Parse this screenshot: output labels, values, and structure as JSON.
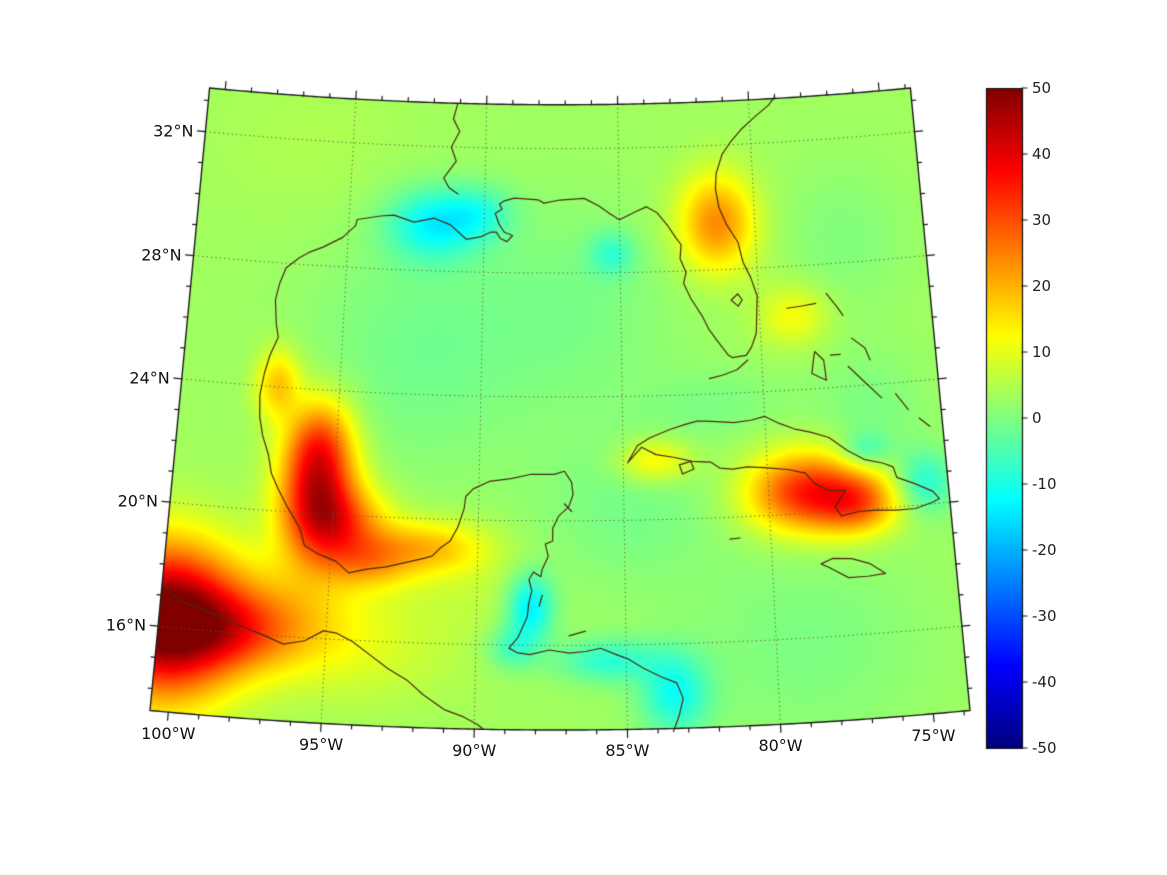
{
  "figure": {
    "background": "#ffffff",
    "kind": "geographic-heatmap"
  },
  "map": {
    "projection": {
      "name": "lambert-conformal-conic",
      "std_parallels": [
        16,
        32
      ],
      "lat_range": [
        13.3,
        33.4
      ],
      "lon_range": [
        -100.6,
        -73.8
      ]
    },
    "graticule": {
      "lat_lines": [
        16,
        20,
        24,
        28,
        32
      ],
      "lon_lines": [
        -95,
        -90,
        -85,
        -80
      ]
    },
    "lat_ticks": [
      {
        "value": 32,
        "label": "32°N"
      },
      {
        "value": 28,
        "label": "28°N"
      },
      {
        "value": 24,
        "label": "24°N"
      },
      {
        "value": 20,
        "label": "20°N"
      },
      {
        "value": 16,
        "label": "16°N"
      }
    ],
    "lon_ticks": [
      {
        "value": -100,
        "label": "100°W"
      },
      {
        "value": -95,
        "label": "95°W"
      },
      {
        "value": -90,
        "label": "90°W"
      },
      {
        "value": -85,
        "label": "85°W"
      },
      {
        "value": -80,
        "label": "80°W"
      },
      {
        "value": -75,
        "label": "75°W"
      }
    ],
    "coast_color": "#4a2a10",
    "grid_color": "#5c5c4a",
    "frame_color": "#1a1a1a"
  },
  "colorbar": {
    "min": -50,
    "max": 50,
    "colormap": "jet",
    "ticks": [
      {
        "value": 50,
        "label": "50"
      },
      {
        "value": 40,
        "label": "40"
      },
      {
        "value": 30,
        "label": "30"
      },
      {
        "value": 20,
        "label": "20"
      },
      {
        "value": 10,
        "label": "10"
      },
      {
        "value": 0,
        "label": "0"
      },
      {
        "value": -10,
        "label": "-10"
      },
      {
        "value": -20,
        "label": "-20"
      },
      {
        "value": -30,
        "label": "-30"
      },
      {
        "value": -40,
        "label": "-40"
      },
      {
        "value": -50,
        "label": "-50"
      }
    ]
  },
  "chart_data": {
    "type": "heatmap",
    "field": "gridded anomaly field over Gulf of Mexico / Caribbean",
    "value_range": [
      -50,
      50
    ],
    "background_value": 3.2,
    "blobs_format": [
      "lat",
      "lon",
      "amplitude",
      "sigma_lat",
      "sigma_lon"
    ],
    "blobs": [
      [
        16.2,
        -100.4,
        50,
        1.7,
        1.7
      ],
      [
        16.1,
        -98.0,
        16,
        0.9,
        1.6
      ],
      [
        17.0,
        -96.0,
        8,
        1.2,
        2.0
      ],
      [
        20.8,
        -95.6,
        34,
        1.5,
        0.9
      ],
      [
        19.7,
        -94.6,
        20,
        0.9,
        1.1
      ],
      [
        22.4,
        -95.6,
        13,
        1.0,
        0.8
      ],
      [
        24.1,
        -97.2,
        15,
        0.8,
        0.55
      ],
      [
        19.1,
        -91.7,
        14,
        0.6,
        1.4
      ],
      [
        18.5,
        -93.6,
        12,
        0.6,
        1.1
      ],
      [
        29.5,
        -81.4,
        21,
        1.1,
        1.0
      ],
      [
        26.4,
        -78.8,
        9,
        0.7,
        0.9
      ],
      [
        20.7,
        -78.7,
        31,
        0.9,
        1.4
      ],
      [
        20.2,
        -76.9,
        20,
        0.7,
        1.0
      ],
      [
        21.9,
        -83.9,
        12,
        0.5,
        0.9
      ],
      [
        29.5,
        -91.9,
        -15,
        0.8,
        1.2
      ],
      [
        29.9,
        -90.2,
        -9,
        0.6,
        0.9
      ],
      [
        28.6,
        -85.3,
        -9,
        0.5,
        0.6
      ],
      [
        17.2,
        -88.2,
        -17,
        0.75,
        0.55
      ],
      [
        15.9,
        -88.8,
        -9,
        0.5,
        0.6
      ],
      [
        15.5,
        -85.6,
        -11,
        0.5,
        1.2
      ],
      [
        14.4,
        -83.4,
        -14,
        0.9,
        0.8
      ],
      [
        21.9,
        -76.6,
        -9,
        0.4,
        0.6
      ],
      [
        20.7,
        -74.6,
        -12,
        0.7,
        0.7
      ],
      [
        25.4,
        -92.3,
        -4.5,
        2.8,
        2.8
      ],
      [
        26.8,
        -86.6,
        -3.5,
        2.3,
        2.5
      ],
      [
        20.4,
        -84.8,
        -4,
        1.8,
        2.3
      ],
      [
        15.8,
        -79.0,
        -3.5,
        2.3,
        2.8
      ],
      [
        23.2,
        -76.3,
        -3.5,
        1.4,
        1.4
      ],
      [
        28.8,
        -76.8,
        -3,
        1.6,
        1.6
      ],
      [
        15.6,
        -94.3,
        5,
        1.2,
        2.6
      ],
      [
        23.7,
        -81.6,
        -3,
        0.8,
        1.8
      ],
      [
        31.9,
        -96.5,
        1.5,
        1.8,
        2.8
      ],
      [
        18.0,
        -90.5,
        3,
        1.2,
        1.5
      ]
    ]
  },
  "coastlines": {
    "segments": [
      [
        [
          -84.0,
          30.1
        ],
        [
          -84.4,
          29.95
        ],
        [
          -85.0,
          29.7
        ],
        [
          -85.35,
          29.9
        ],
        [
          -85.75,
          30.15
        ],
        [
          -86.3,
          30.4
        ],
        [
          -87.2,
          30.35
        ],
        [
          -87.8,
          30.25
        ],
        [
          -88.0,
          30.35
        ],
        [
          -88.9,
          30.4
        ],
        [
          -89.3,
          30.3
        ],
        [
          -89.45,
          30.2
        ],
        [
          -89.35,
          30.05
        ],
        [
          -89.6,
          29.9
        ],
        [
          -89.45,
          29.55
        ],
        [
          -89.25,
          29.3
        ],
        [
          -88.95,
          29.2
        ],
        [
          -89.15,
          29.0
        ],
        [
          -89.4,
          29.1
        ],
        [
          -89.55,
          29.3
        ],
        [
          -89.75,
          29.3
        ],
        [
          -90.1,
          29.15
        ],
        [
          -90.65,
          29.05
        ],
        [
          -91.25,
          29.5
        ],
        [
          -91.85,
          29.7
        ],
        [
          -92.6,
          29.55
        ],
        [
          -93.35,
          29.75
        ],
        [
          -93.85,
          29.7
        ],
        [
          -94.7,
          29.55
        ],
        [
          -94.75,
          29.35
        ],
        [
          -95.2,
          28.95
        ],
        [
          -95.9,
          28.6
        ],
        [
          -96.4,
          28.4
        ],
        [
          -96.75,
          28.2
        ],
        [
          -97.2,
          27.85
        ],
        [
          -97.4,
          27.3
        ],
        [
          -97.5,
          26.8
        ],
        [
          -97.4,
          26.0
        ],
        [
          -97.3,
          25.6
        ],
        [
          -97.55,
          25.0
        ],
        [
          -97.7,
          24.4
        ],
        [
          -97.8,
          23.7
        ],
        [
          -97.75,
          23.0
        ],
        [
          -97.6,
          22.4
        ],
        [
          -97.35,
          21.8
        ],
        [
          -97.2,
          21.2
        ],
        [
          -96.95,
          20.75
        ],
        [
          -96.6,
          20.2
        ],
        [
          -96.1,
          19.5
        ],
        [
          -95.9,
          18.95
        ],
        [
          -95.4,
          18.7
        ],
        [
          -94.8,
          18.5
        ],
        [
          -94.35,
          18.15
        ],
        [
          -93.75,
          18.3
        ],
        [
          -93.1,
          18.4
        ],
        [
          -92.5,
          18.55
        ],
        [
          -91.9,
          18.7
        ],
        [
          -91.55,
          18.8
        ],
        [
          -91.3,
          19.05
        ],
        [
          -90.95,
          19.3
        ],
        [
          -90.7,
          19.75
        ],
        [
          -90.5,
          20.35
        ],
        [
          -90.45,
          20.75
        ],
        [
          -90.2,
          21.0
        ],
        [
          -89.65,
          21.25
        ],
        [
          -88.9,
          21.35
        ],
        [
          -88.2,
          21.5
        ],
        [
          -87.4,
          21.5
        ],
        [
          -87.05,
          21.6
        ],
        [
          -86.8,
          21.25
        ],
        [
          -86.75,
          20.85
        ],
        [
          -86.9,
          20.45
        ],
        [
          -87.25,
          20.15
        ],
        [
          -87.45,
          19.75
        ],
        [
          -87.45,
          19.35
        ],
        [
          -87.7,
          19.25
        ],
        [
          -87.6,
          18.85
        ],
        [
          -87.8,
          18.45
        ],
        [
          -87.85,
          18.2
        ],
        [
          -88.1,
          18.35
        ],
        [
          -88.25,
          18.1
        ],
        [
          -88.15,
          17.75
        ],
        [
          -88.25,
          17.35
        ],
        [
          -88.3,
          16.9
        ],
        [
          -88.6,
          16.25
        ],
        [
          -88.9,
          15.9
        ],
        [
          -88.6,
          15.75
        ],
        [
          -88.2,
          15.7
        ],
        [
          -87.55,
          15.85
        ],
        [
          -86.9,
          15.75
        ],
        [
          -86.35,
          15.8
        ],
        [
          -85.85,
          15.9
        ],
        [
          -85.35,
          15.7
        ],
        [
          -84.95,
          15.55
        ],
        [
          -84.45,
          15.25
        ],
        [
          -83.85,
          14.95
        ],
        [
          -83.35,
          14.75
        ],
        [
          -83.15,
          14.25
        ],
        [
          -83.3,
          13.7
        ],
        [
          -83.5,
          13.2
        ]
      ],
      [
        [
          -84.0,
          30.1
        ],
        [
          -83.6,
          29.9
        ],
        [
          -83.2,
          29.45
        ],
        [
          -82.95,
          29.1
        ],
        [
          -82.75,
          28.85
        ],
        [
          -82.8,
          28.4
        ],
        [
          -82.6,
          27.95
        ],
        [
          -82.7,
          27.6
        ],
        [
          -82.45,
          27.1
        ],
        [
          -82.05,
          26.5
        ],
        [
          -81.85,
          26.1
        ],
        [
          -81.55,
          25.7
        ],
        [
          -81.2,
          25.25
        ],
        [
          -81.05,
          25.15
        ],
        [
          -80.55,
          25.2
        ],
        [
          -80.35,
          25.45
        ],
        [
          -80.15,
          25.9
        ],
        [
          -80.1,
          26.5
        ],
        [
          -80.05,
          27.1
        ],
        [
          -80.25,
          27.7
        ],
        [
          -80.5,
          28.2
        ],
        [
          -80.55,
          28.4
        ],
        [
          -80.65,
          28.85
        ],
        [
          -81.05,
          29.45
        ],
        [
          -81.3,
          30.0
        ],
        [
          -81.4,
          30.6
        ],
        [
          -81.35,
          31.1
        ],
        [
          -81.1,
          31.7
        ],
        [
          -80.75,
          32.1
        ],
        [
          -80.3,
          32.5
        ],
        [
          -79.8,
          32.85
        ],
        [
          -79.25,
          33.2
        ],
        [
          -79.0,
          33.45
        ]
      ],
      [
        [
          -81.9,
          24.5
        ],
        [
          -81.4,
          24.6
        ],
        [
          -80.9,
          24.75
        ],
        [
          -80.5,
          25.05
        ]
      ],
      [
        [
          -81.0,
          27.0
        ],
        [
          -80.75,
          27.2
        ],
        [
          -80.6,
          27.0
        ],
        [
          -80.75,
          26.8
        ],
        [
          -81.0,
          27.0
        ]
      ],
      [
        [
          -91.1,
          33.4
        ],
        [
          -91.25,
          32.9
        ],
        [
          -91.0,
          32.5
        ],
        [
          -91.3,
          32.0
        ],
        [
          -91.1,
          31.55
        ],
        [
          -91.55,
          31.0
        ],
        [
          -91.35,
          30.7
        ],
        [
          -91.0,
          30.5
        ]
      ],
      [
        [
          -82.35,
          23.15
        ],
        [
          -81.7,
          23.1
        ],
        [
          -81.1,
          23.05
        ],
        [
          -80.5,
          23.1
        ],
        [
          -80.0,
          23.2
        ],
        [
          -79.5,
          22.95
        ],
        [
          -79.0,
          22.75
        ],
        [
          -78.4,
          22.6
        ],
        [
          -77.8,
          22.4
        ],
        [
          -77.2,
          21.95
        ],
        [
          -76.6,
          21.6
        ],
        [
          -76.0,
          21.45
        ],
        [
          -75.65,
          21.3
        ],
        [
          -75.55,
          20.95
        ],
        [
          -74.95,
          20.7
        ],
        [
          -74.35,
          20.4
        ],
        [
          -74.15,
          20.15
        ],
        [
          -74.4,
          20.05
        ],
        [
          -75.0,
          19.9
        ],
        [
          -75.65,
          19.9
        ],
        [
          -76.3,
          19.95
        ],
        [
          -76.95,
          19.95
        ],
        [
          -77.55,
          19.85
        ],
        [
          -77.75,
          20.15
        ],
        [
          -77.35,
          20.65
        ],
        [
          -77.95,
          20.7
        ],
        [
          -78.4,
          20.95
        ],
        [
          -78.7,
          21.3
        ],
        [
          -79.3,
          21.45
        ],
        [
          -80.1,
          21.55
        ],
        [
          -80.7,
          21.6
        ],
        [
          -81.2,
          21.55
        ],
        [
          -81.65,
          21.6
        ],
        [
          -81.95,
          21.8
        ],
        [
          -82.6,
          21.85
        ],
        [
          -83.25,
          22.0
        ],
        [
          -83.85,
          22.1
        ],
        [
          -84.35,
          22.35
        ],
        [
          -84.85,
          21.85
        ],
        [
          -84.5,
          22.4
        ],
        [
          -84.05,
          22.65
        ],
        [
          -83.35,
          22.9
        ],
        [
          -82.8,
          23.05
        ],
        [
          -82.35,
          23.15
        ]
      ],
      [
        [
          -82.65,
          21.85
        ],
        [
          -83.05,
          21.75
        ],
        [
          -82.95,
          21.45
        ],
        [
          -82.55,
          21.6
        ],
        [
          -82.65,
          21.85
        ]
      ],
      [
        [
          -77.95,
          18.5
        ],
        [
          -77.3,
          18.45
        ],
        [
          -76.7,
          18.25
        ],
        [
          -76.2,
          17.9
        ],
        [
          -76.8,
          17.85
        ],
        [
          -77.45,
          17.85
        ],
        [
          -78.05,
          18.2
        ],
        [
          -78.35,
          18.35
        ],
        [
          -77.95,
          18.5
        ]
      ],
      [
        [
          -79.0,
          26.65
        ],
        [
          -78.4,
          26.7
        ],
        [
          -77.95,
          26.75
        ]
      ],
      [
        [
          -77.55,
          27.05
        ],
        [
          -77.2,
          26.6
        ],
        [
          -77.0,
          26.3
        ]
      ],
      [
        [
          -78.1,
          25.2
        ],
        [
          -77.8,
          24.9
        ],
        [
          -77.75,
          24.25
        ],
        [
          -78.25,
          24.5
        ],
        [
          -78.15,
          25.0
        ],
        [
          -78.1,
          25.2
        ]
      ],
      [
        [
          -76.75,
          25.55
        ],
        [
          -76.3,
          25.2
        ],
        [
          -76.15,
          24.8
        ]
      ],
      [
        [
          -76.95,
          24.65
        ],
        [
          -76.35,
          24.05
        ],
        [
          -75.85,
          23.55
        ]
      ],
      [
        [
          -75.35,
          23.65
        ],
        [
          -74.95,
          23.1
        ]
      ],
      [
        [
          -74.6,
          22.8
        ],
        [
          -74.25,
          22.5
        ]
      ],
      [
        [
          -77.55,
          25.05
        ],
        [
          -77.2,
          25.05
        ]
      ],
      [
        [
          -100.6,
          17.35
        ],
        [
          -100.0,
          16.9
        ],
        [
          -99.3,
          16.7
        ],
        [
          -98.6,
          16.5
        ],
        [
          -97.9,
          16.25
        ],
        [
          -97.1,
          16.0
        ],
        [
          -96.4,
          15.75
        ],
        [
          -95.7,
          15.9
        ],
        [
          -95.1,
          16.25
        ],
        [
          -94.65,
          16.2
        ],
        [
          -94.1,
          15.95
        ],
        [
          -93.5,
          15.55
        ],
        [
          -92.9,
          15.15
        ],
        [
          -92.25,
          14.8
        ],
        [
          -91.7,
          14.35
        ],
        [
          -91.0,
          13.9
        ],
        [
          -90.4,
          13.7
        ],
        [
          -89.9,
          13.45
        ],
        [
          -89.7,
          13.3
        ]
      ],
      [
        [
          -86.9,
          16.3
        ],
        [
          -86.35,
          16.45
        ]
      ],
      [
        [
          -87.05,
          20.55
        ],
        [
          -86.8,
          20.3
        ]
      ],
      [
        [
          -81.4,
          19.3
        ],
        [
          -81.05,
          19.32
        ]
      ],
      [
        [
          -87.9,
          17.25
        ],
        [
          -87.8,
          17.6
        ]
      ]
    ]
  }
}
